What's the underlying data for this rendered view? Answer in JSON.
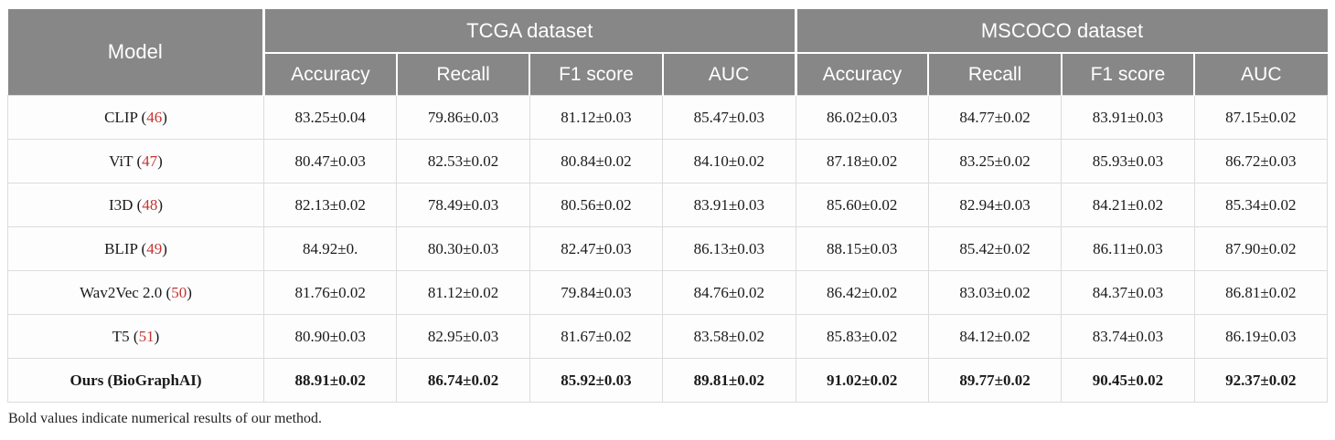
{
  "colors": {
    "header_bg": "#878787",
    "header_text": "#ffffff",
    "citation": "#c53434",
    "body_border": "#dcdcdc",
    "body_text": "#1a1a1a"
  },
  "table": {
    "model_header": "Model",
    "groups": [
      {
        "label": "TCGA dataset",
        "columns": [
          "Accuracy",
          "Recall",
          "F1 score",
          "AUC"
        ]
      },
      {
        "label": "MSCOCO dataset",
        "columns": [
          "Accuracy",
          "Recall",
          "F1 score",
          "AUC"
        ]
      }
    ],
    "rows": [
      {
        "model": "CLIP",
        "citation": "46",
        "bold": false,
        "values": [
          "83.25±0.04",
          "79.86±0.03",
          "81.12±0.03",
          "85.47±0.03",
          "86.02±0.03",
          "84.77±0.02",
          "83.91±0.03",
          "87.15±0.02"
        ]
      },
      {
        "model": "ViT",
        "citation": "47",
        "bold": false,
        "values": [
          "80.47±0.03",
          "82.53±0.02",
          "80.84±0.02",
          "84.10±0.02",
          "87.18±0.02",
          "83.25±0.02",
          "85.93±0.03",
          "86.72±0.03"
        ]
      },
      {
        "model": "I3D",
        "citation": "48",
        "bold": false,
        "values": [
          "82.13±0.02",
          "78.49±0.03",
          "80.56±0.02",
          "83.91±0.03",
          "85.60±0.02",
          "82.94±0.03",
          "84.21±0.02",
          "85.34±0.02"
        ]
      },
      {
        "model": "BLIP",
        "citation": "49",
        "bold": false,
        "values": [
          "84.92±0.",
          "80.30±0.03",
          "82.47±0.03",
          "86.13±0.03",
          "88.15±0.03",
          "85.42±0.02",
          "86.11±0.03",
          "87.90±0.02"
        ]
      },
      {
        "model": "Wav2Vec 2.0",
        "citation": "50",
        "bold": false,
        "values": [
          "81.76±0.02",
          "81.12±0.02",
          "79.84±0.03",
          "84.76±0.02",
          "86.42±0.02",
          "83.03±0.02",
          "84.37±0.03",
          "86.81±0.02"
        ]
      },
      {
        "model": "T5",
        "citation": "51",
        "bold": false,
        "values": [
          "80.90±0.03",
          "82.95±0.03",
          "81.67±0.02",
          "83.58±0.02",
          "85.83±0.02",
          "84.12±0.02",
          "83.74±0.03",
          "86.19±0.03"
        ]
      },
      {
        "model": "Ours (BioGraphAI)",
        "citation": null,
        "bold": true,
        "values": [
          "88.91±0.02",
          "86.74±0.02",
          "85.92±0.03",
          "89.81±0.02",
          "91.02±0.02",
          "89.77±0.02",
          "90.45±0.02",
          "92.37±0.02"
        ]
      }
    ],
    "note": "Bold values indicate numerical results of our method."
  },
  "chart_data": {
    "type": "table",
    "title": "",
    "column_groups": [
      "TCGA dataset",
      "MSCOCO dataset"
    ],
    "columns": [
      "Model",
      "TCGA Accuracy",
      "TCGA Recall",
      "TCGA F1 score",
      "TCGA AUC",
      "MSCOCO Accuracy",
      "MSCOCO Recall",
      "MSCOCO F1 score",
      "MSCOCO AUC"
    ],
    "rows": [
      [
        "CLIP (46)",
        "83.25±0.04",
        "79.86±0.03",
        "81.12±0.03",
        "85.47±0.03",
        "86.02±0.03",
        "84.77±0.02",
        "83.91±0.03",
        "87.15±0.02"
      ],
      [
        "ViT (47)",
        "80.47±0.03",
        "82.53±0.02",
        "80.84±0.02",
        "84.10±0.02",
        "87.18±0.02",
        "83.25±0.02",
        "85.93±0.03",
        "86.72±0.03"
      ],
      [
        "I3D (48)",
        "82.13±0.02",
        "78.49±0.03",
        "80.56±0.02",
        "83.91±0.03",
        "85.60±0.02",
        "82.94±0.03",
        "84.21±0.02",
        "85.34±0.02"
      ],
      [
        "BLIP (49)",
        "84.92±0.",
        "80.30±0.03",
        "82.47±0.03",
        "86.13±0.03",
        "88.15±0.03",
        "85.42±0.02",
        "86.11±0.03",
        "87.90±0.02"
      ],
      [
        "Wav2Vec 2.0 (50)",
        "81.76±0.02",
        "81.12±0.02",
        "79.84±0.03",
        "84.76±0.02",
        "86.42±0.02",
        "83.03±0.02",
        "84.37±0.03",
        "86.81±0.02"
      ],
      [
        "T5 (51)",
        "80.90±0.03",
        "82.95±0.03",
        "81.67±0.02",
        "83.58±0.02",
        "85.83±0.02",
        "84.12±0.02",
        "83.74±0.03",
        "86.19±0.03"
      ],
      [
        "Ours (BioGraphAI)",
        "88.91±0.02",
        "86.74±0.02",
        "85.92±0.03",
        "89.81±0.02",
        "91.02±0.02",
        "89.77±0.02",
        "90.45±0.02",
        "92.37±0.02"
      ]
    ],
    "footnote": "Bold values indicate numerical results of our method."
  }
}
